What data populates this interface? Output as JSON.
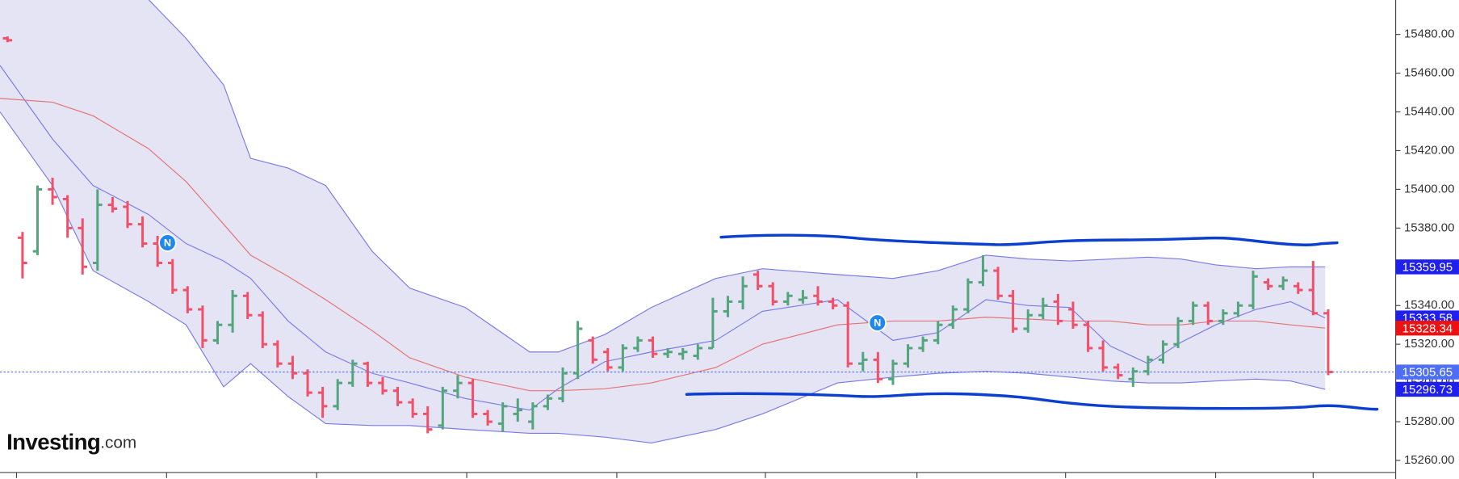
{
  "chart_data": {
    "type": "ohlc",
    "x": [
      -1,
      0,
      1,
      2,
      3,
      4,
      5,
      6,
      7,
      8,
      9,
      10,
      11,
      12,
      13,
      14,
      15,
      16,
      17,
      18,
      19,
      20,
      21,
      22,
      23,
      24,
      25,
      26,
      27,
      28,
      29,
      30,
      31,
      32,
      33,
      34,
      35,
      36,
      37,
      38,
      39,
      40,
      41,
      42,
      43,
      44,
      45,
      46,
      47,
      48,
      49,
      50,
      51,
      52,
      53,
      54,
      55,
      56,
      57,
      58,
      59,
      60,
      61,
      62,
      63,
      64,
      65,
      66,
      67,
      68,
      69,
      70,
      71,
      72,
      73,
      74,
      75,
      76,
      77,
      78,
      79,
      80,
      81,
      82,
      83,
      84,
      85,
      86,
      87
    ],
    "open": [
      15478,
      15375,
      15368,
      15400,
      15395,
      15380,
      15362,
      15392,
      15391,
      15382,
      15372,
      15362,
      15348,
      15338,
      15322,
      15330,
      15345,
      15335,
      15320,
      15310,
      15305,
      15295,
      15288,
      15300,
      15310,
      15300,
      15296,
      15290,
      15284,
      15278,
      15296,
      15300,
      15284,
      15279,
      15284,
      15280,
      15288,
      15292,
      15305,
      15322,
      15316,
      15308,
      15318,
      15322,
      15315,
      15315,
      15314,
      15318,
      15337,
      15342,
      15356,
      15350,
      15342,
      15343,
      15345,
      15342,
      15340,
      15310,
      15312,
      15302,
      15310,
      15318,
      15322,
      15330,
      15338,
      15352,
      15358,
      15345,
      15328,
      15335,
      15342,
      15338,
      15330,
      15318,
      15308,
      15302,
      15306,
      15312,
      15320,
      15332,
      15340,
      15332,
      15336,
      15340,
      15352,
      15350,
      15350,
      15348,
      15336
    ],
    "high": [
      15479,
      15378,
      15402,
      15406,
      15397,
      15385,
      15400,
      15396,
      15394,
      15386,
      15376,
      15364,
      15350,
      15340,
      15332,
      15348,
      15347,
      15337,
      15322,
      15314,
      15307,
      15298,
      15302,
      15312,
      15311,
      15303,
      15298,
      15292,
      15288,
      15298,
      15304,
      15302,
      15286,
      15290,
      15292,
      15290,
      15294,
      15308,
      15332,
      15324,
      15318,
      15320,
      15324,
      15324,
      15318,
      15318,
      15320,
      15344,
      15345,
      15355,
      15358,
      15352,
      15347,
      15348,
      15350,
      15344,
      15342,
      15316,
      15316,
      15312,
      15320,
      15324,
      15332,
      15340,
      15354,
      15366,
      15360,
      15348,
      15338,
      15344,
      15346,
      15342,
      15332,
      15322,
      15310,
      15308,
      15314,
      15322,
      15334,
      15342,
      15342,
      15338,
      15342,
      15358,
      15354,
      15355,
      15352,
      15363,
      15338
    ],
    "low": [
      15476,
      15354,
      15366,
      15392,
      15375,
      15356,
      15358,
      15388,
      15380,
      15370,
      15360,
      15346,
      15336,
      15318,
      15320,
      15326,
      15333,
      15318,
      15308,
      15302,
      15293,
      15282,
      15286,
      15298,
      15298,
      15294,
      15288,
      15282,
      15274,
      15276,
      15292,
      15282,
      15278,
      15275,
      15280,
      15276,
      15286,
      15290,
      15302,
      15310,
      15306,
      15306,
      15316,
      15313,
      15313,
      15312,
      15312,
      15318,
      15334,
      15338,
      15348,
      15340,
      15340,
      15341,
      15340,
      15338,
      15308,
      15306,
      15300,
      15299,
      15308,
      15316,
      15320,
      15328,
      15336,
      15350,
      15343,
      15326,
      15326,
      15333,
      15330,
      15328,
      15316,
      15306,
      15302,
      15298,
      15304,
      15310,
      15318,
      15330,
      15330,
      15330,
      15334,
      15338,
      15348,
      15348,
      15346,
      15335,
      15304
    ],
    "close": [
      15477,
      15362,
      15400,
      15396,
      15380,
      15360,
      15392,
      15390,
      15382,
      15372,
      15362,
      15348,
      15338,
      15322,
      15330,
      15345,
      15335,
      15320,
      15310,
      15305,
      15295,
      15288,
      15300,
      15310,
      15300,
      15296,
      15290,
      15284,
      15276,
      15296,
      15300,
      15284,
      15280,
      15288,
      15286,
      15288,
      15292,
      15305,
      15328,
      15312,
      15308,
      15318,
      15322,
      15315,
      15316,
      15316,
      15318,
      15337,
      15342,
      15350,
      15350,
      15342,
      15345,
      15344,
      15342,
      15340,
      15310,
      15312,
      15302,
      15310,
      15318,
      15322,
      15330,
      15338,
      15352,
      15358,
      15345,
      15328,
      15335,
      15340,
      15332,
      15330,
      15318,
      15308,
      15304,
      15306,
      15312,
      15320,
      15332,
      15340,
      15332,
      15336,
      15340,
      15355,
      15350,
      15353,
      15348,
      15336,
      15305.65
    ],
    "up_color": "#52a57c",
    "down_color": "#f0506a",
    "xlim": [
      -1.5,
      91.5
    ],
    "xticks": [
      -0.4,
      9.6,
      19.6,
      29.6,
      39.6,
      49.5,
      59.6,
      69.5,
      79.5,
      86
    ],
    "ylim": [
      15253.75,
      15497.8
    ],
    "yticks": [
      {
        "value": 15260,
        "label": "15260.00"
      },
      {
        "value": 15280,
        "label": "15280.00"
      },
      {
        "value": 15300,
        "label": "15300.00"
      },
      {
        "value": 15320,
        "label": "15320.00"
      },
      {
        "value": 15340,
        "label": "15340.00"
      },
      {
        "value": 15360,
        "label": "15360.00"
      },
      {
        "value": 15380,
        "label": "15380.00"
      },
      {
        "value": 15400,
        "label": "15400.00"
      },
      {
        "value": 15420,
        "label": "15420.00"
      },
      {
        "value": 15440,
        "label": "15440.00"
      },
      {
        "value": 15460,
        "label": "15460.00"
      },
      {
        "value": 15480,
        "label": "15480.00"
      }
    ],
    "band_x": [
      -1.5,
      2,
      4.7,
      8.4,
      10.9,
      13.4,
      15.2,
      17.7,
      20.2,
      23.3,
      25.8,
      29.5,
      33.8,
      35.7,
      38.8,
      41.9,
      46.2,
      49.3,
      54.3,
      58,
      61,
      64.2,
      67,
      69.8,
      72.5,
      75,
      77.2,
      79.5,
      82.2,
      84.5,
      86.8
    ],
    "band_fill": "#e4e4f4",
    "bands": [
      {
        "color": "#7a7ae6",
        "values": [
          15545,
          15535,
          15525,
          15498,
          15478,
          15454,
          15416,
          15411,
          15402,
          15368,
          15349,
          15339,
          15316,
          15316,
          15325,
          15339,
          15354,
          15359,
          15356,
          15354,
          15358,
          15366,
          15364,
          15363,
          15364,
          15365,
          15364,
          15361,
          15359,
          15360,
          15359.95
        ]
      },
      {
        "color": "#7a7ae6",
        "values": [
          15464,
          15426,
          15402,
          15387,
          15372,
          15363,
          15354,
          15332,
          15316,
          15305,
          15300,
          15292,
          15286,
          15297,
          15311,
          15316,
          15322,
          15337,
          15343,
          15322,
          15326,
          15343,
          15340,
          15339,
          15319,
          15310,
          15321,
          15330,
          15338,
          15342,
          15333.58
        ]
      },
      {
        "color": "#e57373",
        "values": [
          15447,
          15445,
          15438,
          15421,
          15404,
          15382,
          15366,
          15355,
          15343,
          15327,
          15313,
          15303,
          15296,
          15296,
          15297,
          15300,
          15308,
          15320,
          15330,
          15332,
          15332,
          15334,
          15333,
          15332,
          15332,
          15330,
          15330,
          15332,
          15332,
          15330,
          15328.34
        ]
      },
      {
        "color": "#7a7ae6",
        "values": [
          15440,
          15402,
          15358,
          15342,
          15330,
          15298,
          15310,
          15293,
          15279,
          15278,
          15278,
          15276,
          15274,
          15274,
          15272,
          15269,
          15276,
          15284,
          15300,
          15303,
          15305,
          15306,
          15305,
          15303,
          15301,
          15300,
          15300,
          15301,
          15302,
          15301,
          15296.73
        ]
      }
    ],
    "price_labels": [
      {
        "value": 15359.95,
        "color": "#1f1fee"
      },
      {
        "value": 15333.58,
        "color": "#1f1fee"
      },
      {
        "value": 15328.34,
        "color": "#ee1111"
      },
      {
        "value": 15305.65,
        "color": "#4d6ef5"
      },
      {
        "value": 15296.73,
        "color": "#1f1fee"
      }
    ],
    "annotations": [
      "N",
      "N"
    ],
    "logo": [
      "Investing",
      ".com"
    ]
  }
}
